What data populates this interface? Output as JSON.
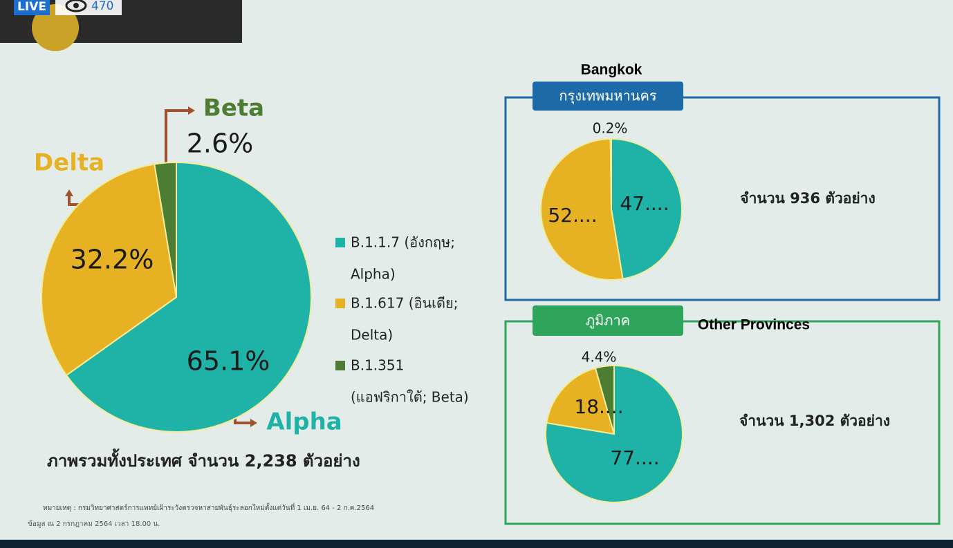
{
  "live_badge": {
    "label": "LIVE",
    "viewers": 470
  },
  "chart_data": [
    {
      "type": "pie",
      "categories": [
        "Alpha",
        "Delta",
        "Beta"
      ],
      "values": [
        65.1,
        32.2,
        2.6
      ],
      "value_labels": [
        "65.1%",
        "32.2%",
        "2.6%"
      ],
      "colors": [
        "#1fb3a8",
        "#e6b223",
        "#4c7d32"
      ],
      "legend": [
        [
          "B.1.1.7 (อังกฤษ;",
          "Alpha)"
        ],
        [
          "B.1.617 (อินเดีย;",
          "Delta)"
        ],
        [
          "B.1.351",
          "(แอฟริกาใต้; Beta)"
        ]
      ],
      "caption": "ภาพรวมทั้งประเทศ จำนวน 2,238 ตัวอย่าง"
    },
    {
      "type": "pie",
      "title": "Bangkok",
      "subtitle": "กรุงเทพมหานคร",
      "values": [
        47.4,
        52.4,
        0.2
      ],
      "value_labels": [
        "47....",
        "52....",
        "0.2%"
      ],
      "colors": [
        "#1fb3a8",
        "#e6b223",
        "#4c7d32"
      ],
      "caption": "จำนวน 936 ตัวอย่าง"
    },
    {
      "type": "pie",
      "title": "Other Provinces",
      "subtitle": "ภูมิภาค",
      "values": [
        77.6,
        18.0,
        4.4
      ],
      "value_labels": [
        "77....",
        "18....",
        "4.4%"
      ],
      "colors": [
        "#1fb3a8",
        "#e6b223",
        "#4c7d32"
      ],
      "caption": "จำนวน 1,302 ตัวอย่าง"
    }
  ],
  "footnotes": [
    "หมายเหตุ : กรมวิทยาศาสตร์การแพทย์เฝ้าระวังตรวจหาสายพันธุ์ระลอกใหม่ตั้งแต่วันที่ 1 เม.ย. 64 - 2 ก.ค.2564",
    "ข้อมูล ณ 2 กรกฎาคม 2564 เวลา 18.00 น."
  ]
}
